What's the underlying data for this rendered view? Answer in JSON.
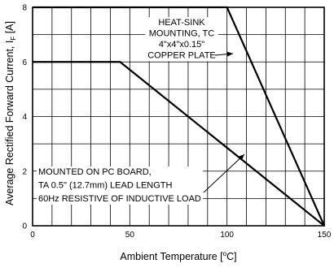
{
  "chart_data": {
    "type": "line",
    "xlabel": "Ambient Temperature [°C]",
    "ylabel": "Average Rectified Forward Current, I",
    "ylabel_subscript": "F",
    "ylabel_unit": " [A]",
    "xlim": [
      0,
      150
    ],
    "ylim": [
      0,
      8
    ],
    "x_ticks": [
      0,
      50,
      100,
      150
    ],
    "y_ticks": [
      0,
      2,
      4,
      6,
      8
    ],
    "grid": true,
    "series": [
      {
        "points": [
          [
            0,
            8
          ],
          [
            100,
            8
          ],
          [
            150,
            0
          ]
        ]
      },
      {
        "points": [
          [
            0,
            6
          ],
          [
            45,
            6
          ],
          [
            150,
            0
          ]
        ]
      }
    ],
    "annotations": [
      {
        "lines": [
          "HEAT-SINK",
          "MOUNTING, TC",
          "4\"x4\"x0.15\"",
          "COPPER PLATE"
        ]
      },
      {
        "lines": [
          "MOUNTED ON PC BOARD,",
          "TA 0.5\" (12.7mm) LEAD LENGTH",
          "60Hz RESISTIVE OF INDUCTIVE LOAD"
        ]
      }
    ]
  }
}
